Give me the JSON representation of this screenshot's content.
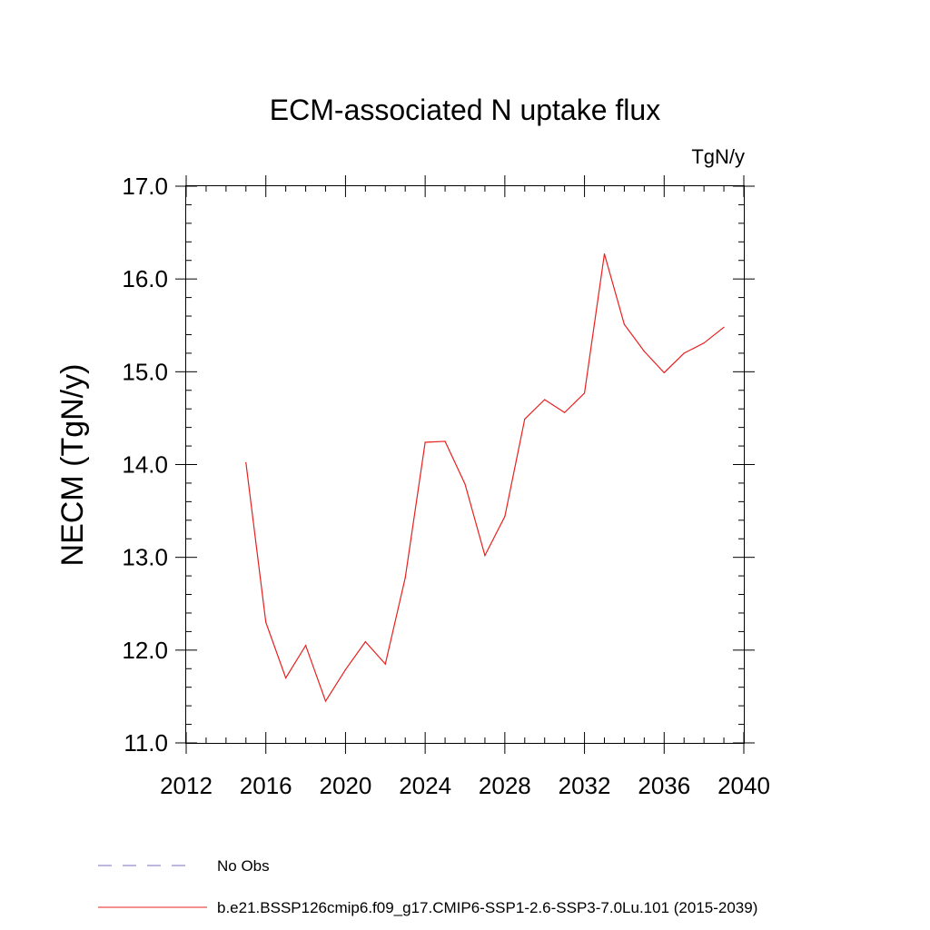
{
  "chart_data": {
    "type": "line",
    "title": "ECM-associated N uptake flux",
    "units_label": "TgN/y",
    "ylabel": "NECM  (TgN/y)",
    "xlabel": "",
    "xlim": [
      2012,
      2040
    ],
    "ylim": [
      11.0,
      17.0
    ],
    "x_ticks": [
      2012,
      2016,
      2020,
      2024,
      2028,
      2032,
      2036,
      2040
    ],
    "y_ticks": [
      11.0,
      12.0,
      13.0,
      14.0,
      15.0,
      16.0,
      17.0
    ],
    "x_tick_labels": [
      "2012",
      "2016",
      "2020",
      "2024",
      "2028",
      "2032",
      "2036",
      "2040"
    ],
    "y_tick_labels": [
      "11.0",
      "12.0",
      "13.0",
      "14.0",
      "15.0",
      "16.0",
      "17.0"
    ],
    "grid": false,
    "legend_placement": "bottom",
    "series": [
      {
        "name": "b.e21.BSSP126cmip6.f09_g17.CMIP6-SSP1-2.6-SSP3-7.0Lu.101 (2015-2039)",
        "color": "#e8201e",
        "dash": "solid",
        "x": [
          2015,
          2016,
          2017,
          2018,
          2019,
          2020,
          2021,
          2022,
          2023,
          2024,
          2025,
          2026,
          2027,
          2028,
          2029,
          2030,
          2031,
          2032,
          2033,
          2034,
          2035,
          2036,
          2037,
          2038,
          2039
        ],
        "y": [
          14.02,
          12.3,
          11.7,
          12.05,
          11.45,
          11.79,
          12.09,
          11.85,
          12.78,
          14.24,
          14.25,
          13.79,
          13.02,
          13.44,
          14.49,
          14.7,
          14.56,
          14.77,
          16.27,
          15.51,
          15.22,
          14.99,
          15.2,
          15.31,
          15.48
        ]
      }
    ],
    "legend": [
      {
        "label": "No Obs",
        "color": "#7b6fc0",
        "dash": "dashed"
      },
      {
        "label": "b.e21.BSSP126cmip6.f09_g17.CMIP6-SSP1-2.6-SSP3-7.0Lu.101 (2015-2039)",
        "color": "#e8201e",
        "dash": "solid"
      }
    ]
  }
}
